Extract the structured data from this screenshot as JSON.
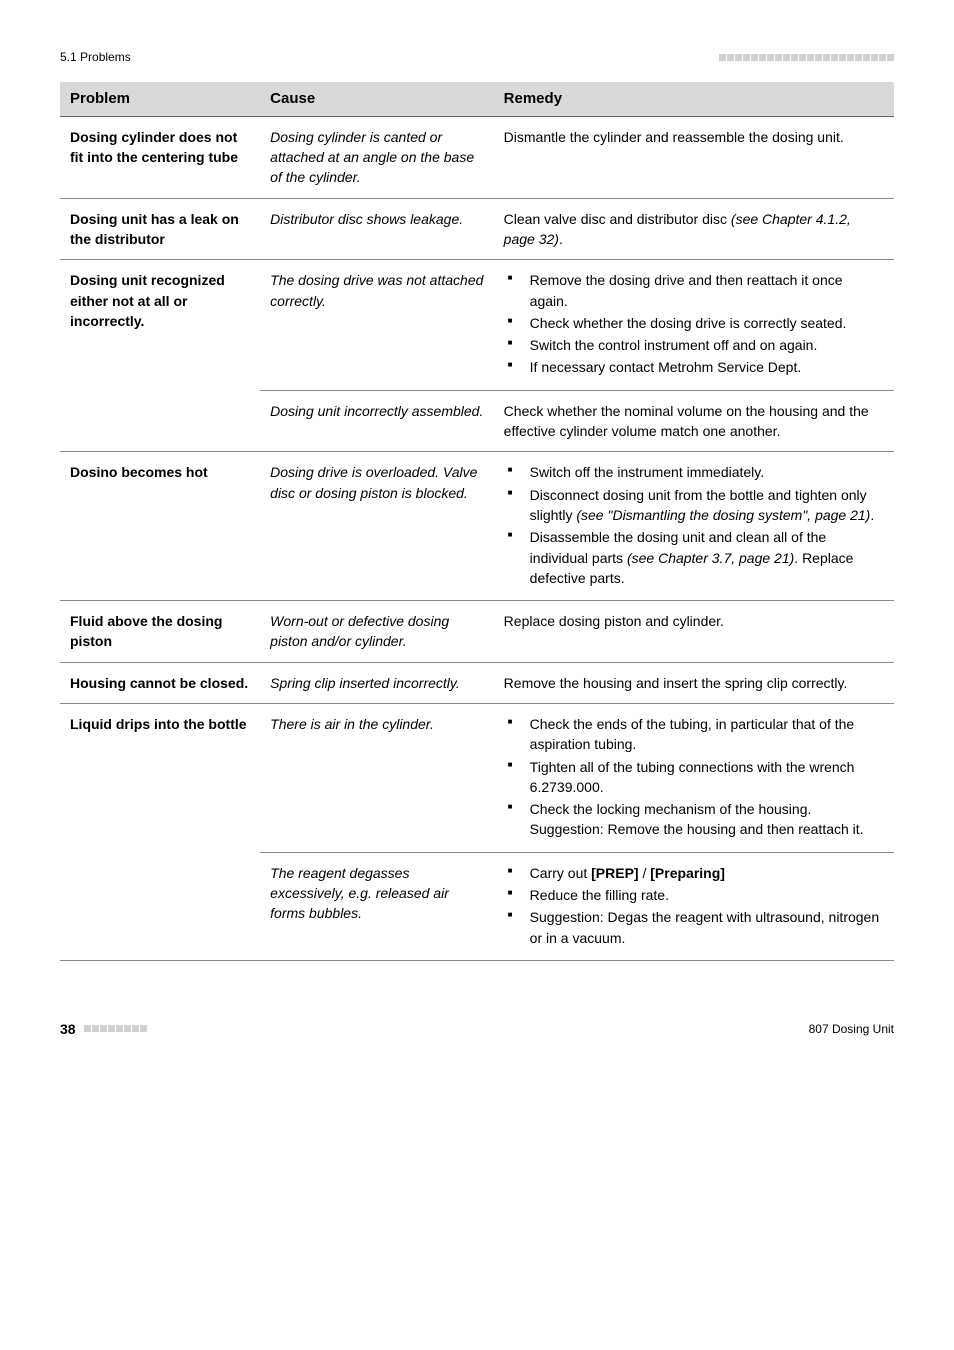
{
  "header": {
    "section": "5.1 Problems"
  },
  "table": {
    "headers": {
      "c1": "Problem",
      "c2": "Cause",
      "c3": "Remedy"
    },
    "r1": {
      "problem": "Dosing cylinder does not fit into the centering tube",
      "cause": "Dosing cylinder is canted or attached at an angle on the base of the cylinder.",
      "remedy": "Dismantle the cylinder and reassemble the dosing unit."
    },
    "r2": {
      "problem": "Dosing unit has a leak on the distributor",
      "cause": "Distributor disc shows leakage.",
      "remedy_a": "Clean valve disc and distributor disc ",
      "remedy_b": "(see Chapter 4.1.2, page 32)",
      "remedy_c": "."
    },
    "r3": {
      "problem": "Dosing unit recognized either not at all or incorrectly.",
      "cause1": "The dosing drive was not attached correctly.",
      "remedy1": {
        "i1": "Remove the dosing drive and then reattach it once again.",
        "i2": "Check whether the dosing drive is correctly seated.",
        "i3": "Switch the control instrument off and on again.",
        "i4": "If necessary contact Metrohm Service Dept."
      },
      "cause2": "Dosing unit incorrectly assembled.",
      "remedy2": "Check whether the nominal volume on the housing and the effective cylinder volume match one another."
    },
    "r4": {
      "problem": "Dosino becomes hot",
      "cause": "Dosing drive is overloaded. Valve disc or dosing piston is blocked.",
      "remedy": {
        "i1": "Switch off the instrument immediately.",
        "i2a": "Disconnect dosing unit from the bottle and tighten only slightly ",
        "i2b": "(see \"Dismantling the dosing system\", page 21)",
        "i2c": ".",
        "i3a": "Disassemble the dosing unit and clean all of the individual parts ",
        "i3b": "(see Chapter 3.7, page 21)",
        "i3c": ". Replace defective parts."
      }
    },
    "r5": {
      "problem": "Fluid above the dosing piston",
      "cause": "Worn-out or defective dosing piston and/or cylinder.",
      "remedy": "Replace dosing piston and cylinder."
    },
    "r6": {
      "problem": "Housing cannot be closed.",
      "cause": "Spring clip inserted incorrectly.",
      "remedy": "Remove the housing and insert the spring clip correctly."
    },
    "r7": {
      "problem": "Liquid drips into the bottle",
      "cause1": "There is air in the cylinder.",
      "remedy1": {
        "i1": "Check the ends of the tubing, in particular that of the aspiration tubing.",
        "i2": "Tighten all of the tubing connections with the wrench 6.2739.000.",
        "i3": "Check the locking mechanism of the housing. Suggestion: Remove the housing and then reattach it."
      },
      "cause2": "The reagent degasses excessively, e.g. released air forms bubbles.",
      "remedy2": {
        "i1a": "Carry out ",
        "i1b": "[PREP]",
        "i1c": " / ",
        "i1d": "[Preparing]",
        "i2": "Reduce the filling rate.",
        "i3": "Suggestion: Degas the reagent with ultrasound, nitrogen or in a vacuum."
      }
    }
  },
  "footer": {
    "page": "38",
    "right": "807 Dosing Unit"
  }
}
